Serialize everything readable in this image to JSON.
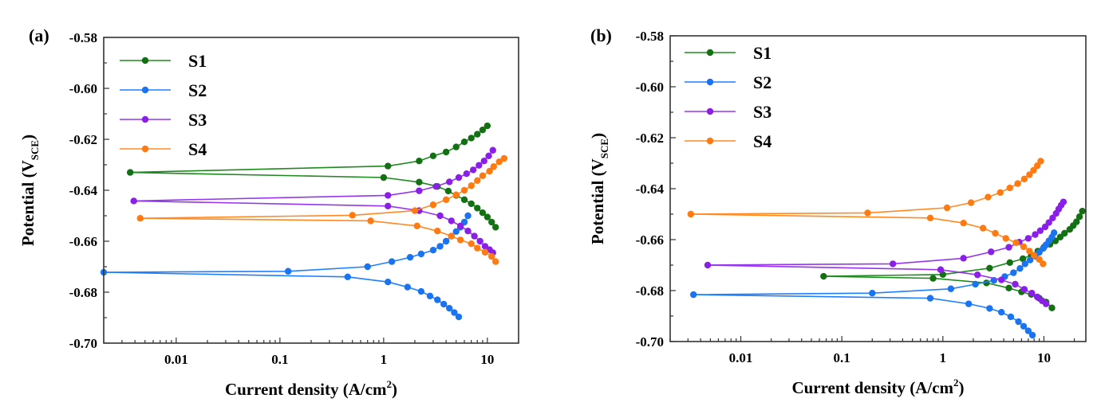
{
  "chart_data": [
    {
      "type": "line",
      "panel_label": "(a)",
      "title": "",
      "xlabel": "Current density (A/cm",
      "xlabel_sup": "2",
      "xlabel_close": ")",
      "ylabel": "Potential (V",
      "ylabel_sub": "SCE",
      "ylabel_close": ")",
      "xscale": "log",
      "xlim": [
        0.002,
        20
      ],
      "ylim": [
        -0.7,
        -0.58
      ],
      "xticks": [
        {
          "v": 0.01,
          "label": "0.01"
        },
        {
          "v": 0.1,
          "label": "0.1"
        },
        {
          "v": 1,
          "label": "1"
        },
        {
          "v": 10,
          "label": "10"
        }
      ],
      "yticks": [
        {
          "v": -0.58,
          "label": "-0.58"
        },
        {
          "v": -0.6,
          "label": "-0.60"
        },
        {
          "v": -0.62,
          "label": "-0.62"
        },
        {
          "v": -0.64,
          "label": "-0.64"
        },
        {
          "v": -0.66,
          "label": "-0.66"
        },
        {
          "v": -0.68,
          "label": "-0.68"
        },
        {
          "v": -0.7,
          "label": "-0.70"
        }
      ],
      "grid": false,
      "legend_position": "top-left",
      "series": [
        {
          "name": "S1",
          "color": "#1f8a1f",
          "marker_color": "#137013",
          "ecorr": -0.633,
          "start_x": 0.0036,
          "anodic": [
            [
              1.1,
              -0.6305
            ],
            [
              2.2,
              -0.6285
            ],
            [
              3.0,
              -0.6265
            ],
            [
              4.0,
              -0.625
            ],
            [
              5.0,
              -0.623
            ],
            [
              6.0,
              -0.621
            ],
            [
              7.0,
              -0.6195
            ],
            [
              8.0,
              -0.618
            ],
            [
              9.0,
              -0.6163
            ],
            [
              10.0,
              -0.6147
            ]
          ],
          "cathodic": [
            [
              1.0,
              -0.635
            ],
            [
              2.2,
              -0.6368
            ],
            [
              3.3,
              -0.6385
            ],
            [
              4.2,
              -0.6403
            ],
            [
              5.0,
              -0.642
            ],
            [
              6.0,
              -0.6437
            ],
            [
              7.0,
              -0.6453
            ],
            [
              8.0,
              -0.647
            ],
            [
              9.0,
              -0.6488
            ],
            [
              10.0,
              -0.6505
            ],
            [
              11.0,
              -0.6525
            ],
            [
              12.0,
              -0.6545
            ]
          ]
        },
        {
          "name": "S2",
          "color": "#1e7fff",
          "marker_color": "#1a73f0",
          "ecorr": -0.6722,
          "start_x": 0.002,
          "anodic": [
            [
              0.12,
              -0.6718
            ],
            [
              0.7,
              -0.67
            ],
            [
              1.2,
              -0.668
            ],
            [
              1.8,
              -0.6663
            ],
            [
              2.3,
              -0.665
            ],
            [
              3.0,
              -0.6635
            ],
            [
              3.5,
              -0.662
            ],
            [
              4.0,
              -0.66
            ],
            [
              4.5,
              -0.658
            ],
            [
              5.0,
              -0.6562
            ],
            [
              5.5,
              -0.6545
            ],
            [
              6.0,
              -0.6525
            ],
            [
              6.5,
              -0.65
            ]
          ],
          "cathodic": [
            [
              0.45,
              -0.674
            ],
            [
              1.1,
              -0.676
            ],
            [
              1.7,
              -0.678
            ],
            [
              2.3,
              -0.6797
            ],
            [
              2.8,
              -0.6815
            ],
            [
              3.3,
              -0.683
            ],
            [
              3.8,
              -0.6847
            ],
            [
              4.3,
              -0.6863
            ],
            [
              4.8,
              -0.688
            ],
            [
              5.3,
              -0.6897
            ]
          ]
        },
        {
          "name": "S3",
          "color": "#9436f0",
          "marker_color": "#8a1fe8",
          "ecorr": -0.6442,
          "start_x": 0.0039,
          "anodic": [
            [
              1.1,
              -0.642
            ],
            [
              2.2,
              -0.6402
            ],
            [
              3.2,
              -0.6385
            ],
            [
              4.3,
              -0.6367
            ],
            [
              5.3,
              -0.635
            ],
            [
              6.3,
              -0.6335
            ],
            [
              7.3,
              -0.632
            ],
            [
              8.3,
              -0.6302
            ],
            [
              9.3,
              -0.6285
            ],
            [
              10.3,
              -0.6265
            ],
            [
              11.3,
              -0.6243
            ]
          ],
          "cathodic": [
            [
              1.1,
              -0.6462
            ],
            [
              2.2,
              -0.648
            ],
            [
              3.5,
              -0.65
            ],
            [
              4.5,
              -0.652
            ],
            [
              5.5,
              -0.654
            ],
            [
              6.5,
              -0.656
            ],
            [
              7.5,
              -0.658
            ],
            [
              8.5,
              -0.66
            ],
            [
              9.5,
              -0.662
            ],
            [
              10.5,
              -0.6633
            ],
            [
              11.3,
              -0.6645
            ]
          ]
        },
        {
          "name": "S4",
          "color": "#ff8a24",
          "marker_color": "#ff7a10",
          "ecorr": -0.651,
          "start_x": 0.0045,
          "anodic": [
            [
              0.5,
              -0.6498
            ],
            [
              2.0,
              -0.648
            ],
            [
              3.0,
              -0.6457
            ],
            [
              4.0,
              -0.6437
            ],
            [
              5.0,
              -0.6418
            ],
            [
              6.0,
              -0.64
            ],
            [
              7.0,
              -0.6382
            ],
            [
              8.0,
              -0.6362
            ],
            [
              9.0,
              -0.6343
            ],
            [
              10.5,
              -0.6325
            ],
            [
              11.5,
              -0.6307
            ],
            [
              13.0,
              -0.6288
            ],
            [
              14.5,
              -0.6275
            ]
          ],
          "cathodic": [
            [
              0.75,
              -0.652
            ],
            [
              2.1,
              -0.654
            ],
            [
              3.3,
              -0.656
            ],
            [
              4.5,
              -0.658
            ],
            [
              5.5,
              -0.6595
            ],
            [
              7.0,
              -0.661
            ],
            [
              8.0,
              -0.6627
            ],
            [
              9.5,
              -0.6643
            ],
            [
              11.0,
              -0.666
            ],
            [
              12.0,
              -0.668
            ]
          ]
        }
      ]
    },
    {
      "type": "line",
      "panel_label": "(b)",
      "title": "",
      "xlabel": "Current density (A/cm",
      "xlabel_sup": "2",
      "xlabel_close": ")",
      "ylabel": "Potential (V",
      "ylabel_sub": "SCE",
      "ylabel_close": ")",
      "xscale": "log",
      "xlim": [
        0.002,
        26
      ],
      "ylim": [
        -0.7,
        -0.58
      ],
      "xticks": [
        {
          "v": 0.01,
          "label": "0.01"
        },
        {
          "v": 0.1,
          "label": "0.1"
        },
        {
          "v": 1,
          "label": "1"
        },
        {
          "v": 10,
          "label": "10"
        }
      ],
      "yticks": [
        {
          "v": -0.58,
          "label": "-0.58"
        },
        {
          "v": -0.6,
          "label": "-0.60"
        },
        {
          "v": -0.62,
          "label": "-0.62"
        },
        {
          "v": -0.64,
          "label": "-0.64"
        },
        {
          "v": -0.66,
          "label": "-0.66"
        },
        {
          "v": -0.68,
          "label": "-0.68"
        },
        {
          "v": -0.7,
          "label": "-0.70"
        }
      ],
      "grid": false,
      "legend_position": "top-left",
      "series": [
        {
          "name": "S1",
          "color": "#1f8a1f",
          "marker_color": "#137013",
          "ecorr": -0.6744,
          "start_x": 0.066,
          "anodic": [
            [
              1.0,
              -0.6737
            ],
            [
              2.9,
              -0.6712
            ],
            [
              4.6,
              -0.669
            ],
            [
              6.2,
              -0.6675
            ],
            [
              7.5,
              -0.666
            ],
            [
              8.7,
              -0.6645
            ],
            [
              10.0,
              -0.663
            ],
            [
              11.5,
              -0.6618
            ],
            [
              13.0,
              -0.6605
            ],
            [
              14.5,
              -0.659
            ],
            [
              16.0,
              -0.6575
            ],
            [
              18.0,
              -0.656
            ],
            [
              19.5,
              -0.6545
            ],
            [
              21.0,
              -0.653
            ],
            [
              22.5,
              -0.651
            ],
            [
              24.0,
              -0.6488
            ]
          ],
          "cathodic": [
            [
              0.8,
              -0.6752
            ],
            [
              2.7,
              -0.677
            ],
            [
              4.5,
              -0.679
            ],
            [
              6.0,
              -0.6805
            ],
            [
              7.5,
              -0.6815
            ],
            [
              9.0,
              -0.683
            ],
            [
              10.5,
              -0.6845
            ],
            [
              12.0,
              -0.6868
            ]
          ]
        },
        {
          "name": "S2",
          "color": "#1e7fff",
          "marker_color": "#1a73f0",
          "ecorr": -0.6816,
          "start_x": 0.0034,
          "anodic": [
            [
              0.2,
              -0.681
            ],
            [
              1.2,
              -0.6793
            ],
            [
              2.1,
              -0.6775
            ],
            [
              3.2,
              -0.676
            ],
            [
              4.1,
              -0.6745
            ],
            [
              5.0,
              -0.673
            ],
            [
              5.8,
              -0.6713
            ],
            [
              6.5,
              -0.6695
            ],
            [
              7.3,
              -0.668
            ],
            [
              8.2,
              -0.6665
            ],
            [
              9.0,
              -0.665
            ],
            [
              9.8,
              -0.6635
            ],
            [
              10.5,
              -0.662
            ],
            [
              11.2,
              -0.6605
            ],
            [
              12.0,
              -0.659
            ],
            [
              12.6,
              -0.6573
            ]
          ],
          "cathodic": [
            [
              0.75,
              -0.683
            ],
            [
              1.8,
              -0.6852
            ],
            [
              2.9,
              -0.687
            ],
            [
              3.8,
              -0.6885
            ],
            [
              4.7,
              -0.6903
            ],
            [
              5.6,
              -0.6922
            ],
            [
              6.3,
              -0.694
            ],
            [
              7.0,
              -0.6958
            ],
            [
              7.7,
              -0.6975
            ]
          ]
        },
        {
          "name": "S3",
          "color": "#9436f0",
          "marker_color": "#8a1fe8",
          "ecorr": -0.67,
          "start_x": 0.0047,
          "anodic": [
            [
              0.32,
              -0.6695
            ],
            [
              1.6,
              -0.6673
            ],
            [
              3.0,
              -0.6648
            ],
            [
              4.5,
              -0.663
            ],
            [
              5.7,
              -0.661
            ],
            [
              7.0,
              -0.6595
            ],
            [
              8.2,
              -0.658
            ],
            [
              9.2,
              -0.6565
            ],
            [
              10.3,
              -0.655
            ],
            [
              11.2,
              -0.6533
            ],
            [
              12.2,
              -0.6515
            ],
            [
              13.2,
              -0.6497
            ],
            [
              14.0,
              -0.648
            ],
            [
              14.8,
              -0.6465
            ],
            [
              15.6,
              -0.6452
            ]
          ],
          "cathodic": [
            [
              0.95,
              -0.6718
            ],
            [
              2.2,
              -0.6738
            ],
            [
              3.8,
              -0.6758
            ],
            [
              5.2,
              -0.6775
            ],
            [
              6.4,
              -0.6795
            ],
            [
              7.6,
              -0.681
            ],
            [
              8.6,
              -0.6825
            ],
            [
              9.6,
              -0.684
            ],
            [
              10.5,
              -0.6852
            ]
          ]
        },
        {
          "name": "S4",
          "color": "#ff8a24",
          "marker_color": "#ff7a10",
          "ecorr": -0.65,
          "start_x": 0.0032,
          "anodic": [
            [
              0.18,
              -0.6495
            ],
            [
              1.1,
              -0.6475
            ],
            [
              1.9,
              -0.6455
            ],
            [
              2.8,
              -0.6433
            ],
            [
              3.7,
              -0.6415
            ],
            [
              4.6,
              -0.6397
            ],
            [
              5.5,
              -0.638
            ],
            [
              6.4,
              -0.6362
            ],
            [
              7.2,
              -0.6345
            ],
            [
              7.9,
              -0.6328
            ],
            [
              8.6,
              -0.631
            ],
            [
              9.3,
              -0.6292
            ]
          ],
          "cathodic": [
            [
              0.75,
              -0.6515
            ],
            [
              1.6,
              -0.6535
            ],
            [
              2.5,
              -0.6555
            ],
            [
              3.3,
              -0.6575
            ],
            [
              4.2,
              -0.6595
            ],
            [
              5.3,
              -0.6612
            ],
            [
              6.3,
              -0.6628
            ],
            [
              7.2,
              -0.6645
            ],
            [
              8.0,
              -0.6662
            ],
            [
              9.0,
              -0.6678
            ],
            [
              9.8,
              -0.6695
            ]
          ]
        }
      ]
    }
  ]
}
